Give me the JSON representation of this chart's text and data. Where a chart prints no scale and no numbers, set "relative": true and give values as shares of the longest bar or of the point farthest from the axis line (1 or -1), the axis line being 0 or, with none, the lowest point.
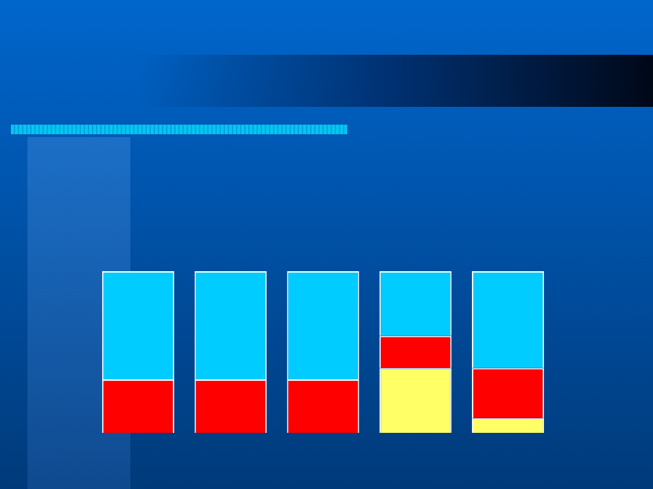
{
  "chart_data": {
    "type": "bar",
    "stacked": true,
    "relative": true,
    "categories": [
      null,
      null,
      null,
      null,
      null
    ],
    "series": [
      {
        "color": "#ffff66",
        "values": [
          0,
          0,
          0,
          0.4,
          0.09
        ]
      },
      {
        "color": "#ff0000",
        "values": [
          0.33,
          0.33,
          0.33,
          0.2,
          0.31
        ]
      },
      {
        "color": "#00ccff",
        "values": [
          0.67,
          0.67,
          0.67,
          0.4,
          0.6
        ]
      }
    ]
  }
}
